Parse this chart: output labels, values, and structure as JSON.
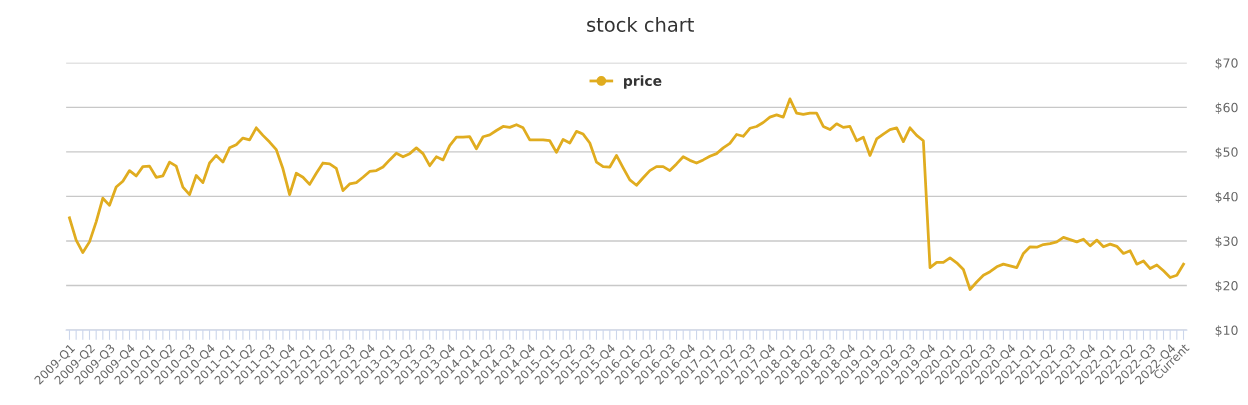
{
  "chart_data": {
    "type": "line",
    "title": "stock chart",
    "categories": [
      "2009-Q1",
      null,
      null,
      "2009-Q2",
      null,
      null,
      "2009-Q3",
      null,
      null,
      "2009-Q4",
      null,
      null,
      "2010-Q1",
      null,
      null,
      "2010-Q2",
      null,
      null,
      "2010-Q3",
      null,
      null,
      "2010-Q4",
      null,
      null,
      "2011-Q1",
      null,
      null,
      "2011-Q2",
      null,
      null,
      "2011-Q3",
      null,
      null,
      "2011-Q4",
      null,
      null,
      "2012-Q1",
      null,
      null,
      "2012-Q2",
      null,
      null,
      "2012-Q3",
      null,
      null,
      "2012-Q4",
      null,
      null,
      "2013-Q1",
      null,
      null,
      "2013-Q2",
      null,
      null,
      "2013-Q3",
      null,
      null,
      "2013-Q4",
      null,
      null,
      "2014-Q1",
      null,
      null,
      "2014-Q2",
      null,
      null,
      "2014-Q3",
      null,
      null,
      "2014-Q4",
      null,
      null,
      "2015-Q1",
      null,
      null,
      "2015-Q2",
      null,
      null,
      "2015-Q3",
      null,
      null,
      "2015-Q4",
      null,
      null,
      "2016-Q1",
      null,
      null,
      "2016-Q2",
      null,
      null,
      "2016-Q3",
      null,
      null,
      "2016-Q4",
      null,
      null,
      "2017-Q1",
      null,
      null,
      "2017-Q2",
      null,
      null,
      "2017-Q3",
      null,
      null,
      "2017-Q4",
      null,
      null,
      "2018-Q1",
      null,
      null,
      "2018-Q2",
      null,
      null,
      "2018-Q3",
      null,
      null,
      "2018-Q4",
      null,
      null,
      "2019-Q1",
      null,
      null,
      "2019-Q2",
      null,
      null,
      "2019-Q3",
      null,
      null,
      "2019-Q4",
      null,
      null,
      "2020-Q1",
      null,
      null,
      "2020-Q2",
      null,
      null,
      "2020-Q3",
      null,
      null,
      "2020-Q4",
      null,
      null,
      "2021-Q1",
      null,
      null,
      "2021-Q2",
      null,
      null,
      "2021-Q3",
      null,
      null,
      "2021-Q4",
      null,
      null,
      "2022-Q1",
      null,
      null,
      "2022-Q2",
      null,
      null,
      "2022-Q3",
      null,
      null,
      "2022-Q4",
      null,
      "Current"
    ],
    "series": [
      {
        "name": "price",
        "color": "#e0ac1f",
        "values": [
          35.2,
          30.2,
          27.4,
          29.8,
          34.3,
          39.6,
          38.0,
          42.1,
          43.4,
          45.8,
          44.6,
          46.7,
          46.8,
          44.3,
          44.6,
          47.7,
          46.8,
          42.1,
          40.4,
          44.7,
          43.1,
          47.5,
          49.2,
          47.7,
          50.9,
          51.6,
          53.1,
          52.7,
          55.4,
          53.7,
          52.2,
          50.5,
          46.2,
          40.4,
          45.2,
          44.3,
          42.7,
          45.2,
          47.5,
          47.3,
          46.3,
          41.3,
          42.8,
          43.1,
          44.3,
          45.6,
          45.8,
          46.6,
          48.2,
          49.7,
          48.9,
          49.6,
          50.9,
          49.6,
          46.9,
          48.9,
          48.2,
          51.4,
          53.3,
          53.3,
          53.4,
          50.7,
          53.4,
          53.8,
          54.8,
          55.7,
          55.5,
          56.1,
          55.4,
          52.7,
          52.7,
          52.7,
          52.5,
          49.9,
          52.8,
          52.0,
          54.6,
          54.0,
          52.0,
          47.7,
          46.7,
          46.6,
          49.2,
          46.4,
          43.7,
          42.5,
          44.2,
          45.8,
          46.7,
          46.7,
          45.8,
          47.3,
          48.9,
          48.1,
          47.5,
          48.2,
          49.0,
          49.6,
          50.9,
          51.9,
          53.9,
          53.5,
          55.3,
          55.7,
          56.6,
          57.8,
          58.3,
          57.8,
          61.9,
          58.7,
          58.4,
          58.7,
          58.7,
          55.7,
          55.0,
          56.3,
          55.5,
          55.7,
          52.5,
          53.3,
          49.2,
          52.9,
          54.0,
          55.0,
          55.4,
          52.3,
          55.4,
          53.7,
          52.5,
          24.0,
          25.2,
          25.2,
          26.2,
          25.1,
          23.6,
          19.1,
          20.8,
          22.3,
          23.1,
          24.2,
          24.8,
          24.4,
          24.0,
          27.2,
          28.7,
          28.6,
          29.2,
          29.4,
          29.8,
          30.8,
          30.3,
          29.8,
          30.4,
          28.9,
          30.2,
          28.7,
          29.3,
          28.8,
          27.2,
          27.8,
          24.8,
          25.5,
          23.8,
          24.6,
          23.3,
          21.8,
          22.3,
          24.8
        ]
      }
    ],
    "ylim": [
      10,
      70
    ],
    "yticks": [
      {
        "value": 10,
        "label": "$10"
      },
      {
        "value": 20,
        "label": "$20"
      },
      {
        "value": 30,
        "label": "$30"
      },
      {
        "value": 40,
        "label": "$40"
      },
      {
        "value": 50,
        "label": "$50"
      },
      {
        "value": 60,
        "label": "$60"
      },
      {
        "value": 70,
        "label": "$70"
      }
    ],
    "grid": "y",
    "legend": "top",
    "line_style": "solid"
  }
}
